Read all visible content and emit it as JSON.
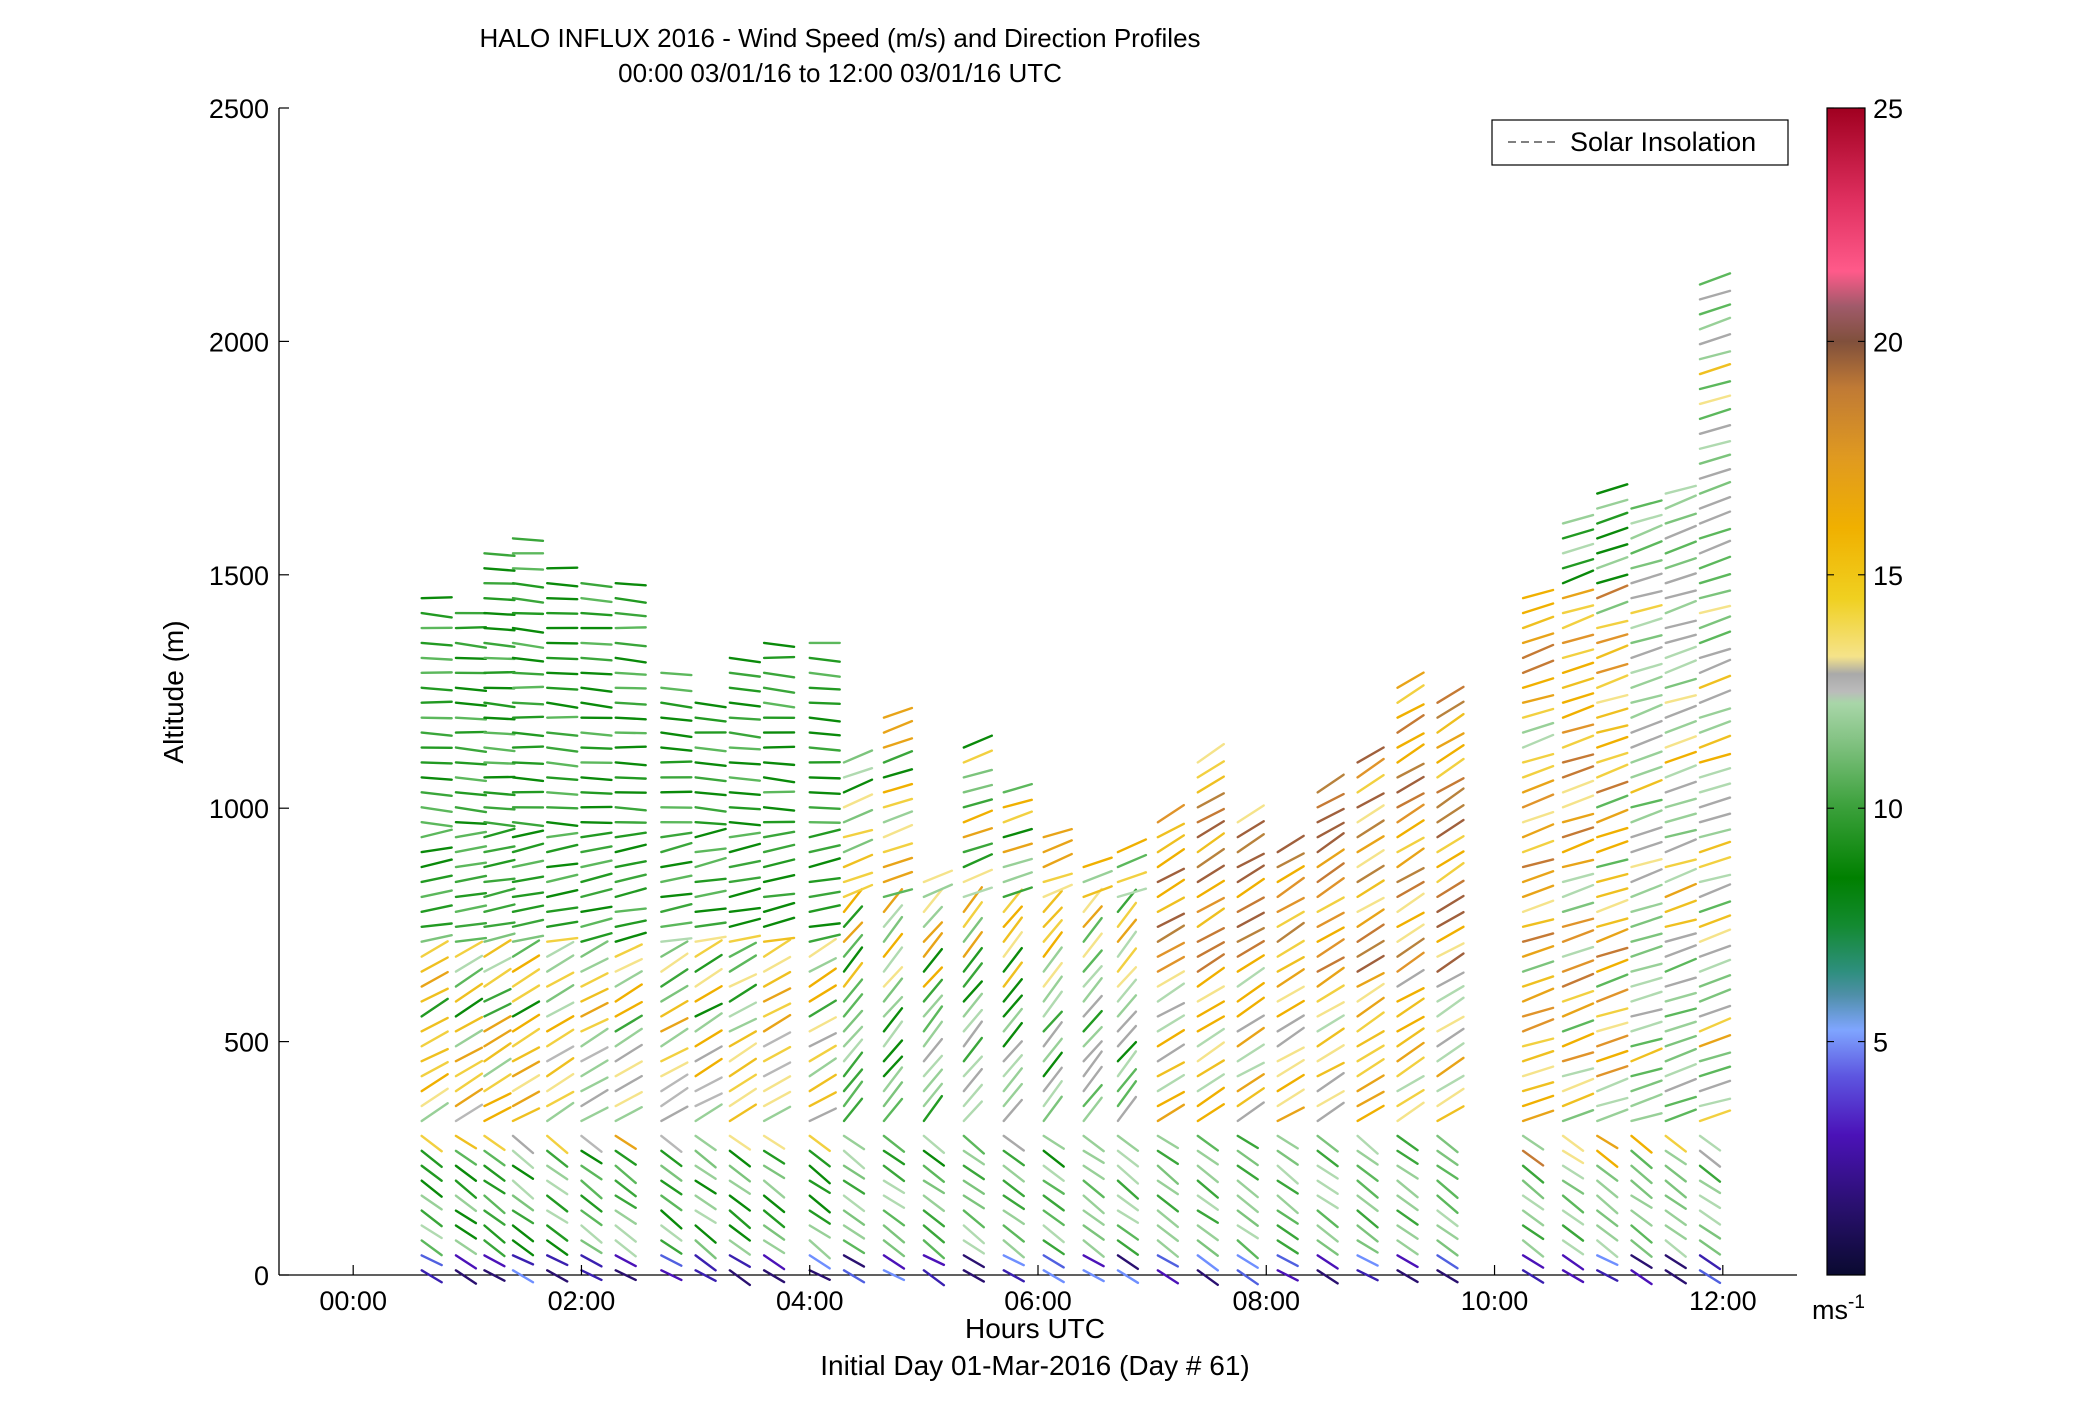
{
  "chart_data": {
    "type": "scatter",
    "title": "HALO INFLUX 2016 - Wind Speed (m/s) and Direction Profiles",
    "subtitle": "00:00 03/01/16 to 12:00 03/01/16  UTC",
    "xlabel": "Hours UTC",
    "xlabel2": "Initial Day 01-Mar-2016 (Day # 61)",
    "ylabel": "Altitude (m)",
    "x_ticks": [
      "00:00",
      "02:00",
      "04:00",
      "06:00",
      "08:00",
      "10:00",
      "12:00"
    ],
    "x_tick_values": [
      0,
      2,
      4,
      6,
      8,
      10,
      12
    ],
    "y_ticks": [
      "0",
      "500",
      "1000",
      "1500",
      "2000",
      "2500"
    ],
    "y_tick_values": [
      0,
      500,
      1000,
      1500,
      2000,
      2500
    ],
    "xlim": [
      -0.65,
      12.65
    ],
    "ylim": [
      0,
      2500
    ],
    "grid": false,
    "legend": {
      "label": "Solar Insolation",
      "placement": "top-right",
      "line_style": "dashed",
      "color": "#808080"
    },
    "colorbar": {
      "range": [
        0,
        25
      ],
      "ticks": [
        "5",
        "10",
        "15",
        "20",
        "25"
      ],
      "tick_values": [
        5,
        10,
        15,
        20,
        25
      ],
      "unit_label": "ms",
      "unit_exponent": "-1"
    },
    "profiles": [
      {
        "time": 0.6,
        "top": 1460
      },
      {
        "time": 0.9,
        "top": 1430
      },
      {
        "time": 1.15,
        "top": 1560
      },
      {
        "time": 1.4,
        "top": 1585
      },
      {
        "time": 1.7,
        "top": 1540
      },
      {
        "time": 2.0,
        "top": 1510
      },
      {
        "time": 2.3,
        "top": 1490
      },
      {
        "time": 2.7,
        "top": 1290
      },
      {
        "time": 3.0,
        "top": 1250
      },
      {
        "time": 3.3,
        "top": 1350
      },
      {
        "time": 3.6,
        "top": 1380
      },
      {
        "time": 4.0,
        "top": 1370
      },
      {
        "time": 4.3,
        "top": 1100
      },
      {
        "time": 4.65,
        "top": 1210
      },
      {
        "time": 5.0,
        "top": 870
      },
      {
        "time": 5.35,
        "top": 1130
      },
      {
        "time": 5.7,
        "top": 1060
      },
      {
        "time": 6.05,
        "top": 960
      },
      {
        "time": 6.4,
        "top": 880
      },
      {
        "time": 6.7,
        "top": 920
      },
      {
        "time": 7.05,
        "top": 1000
      },
      {
        "time": 7.4,
        "top": 1120
      },
      {
        "time": 7.75,
        "top": 1000
      },
      {
        "time": 8.1,
        "top": 930
      },
      {
        "time": 8.45,
        "top": 1060
      },
      {
        "time": 8.8,
        "top": 1110
      },
      {
        "time": 9.15,
        "top": 1280
      },
      {
        "time": 9.5,
        "top": 1250
      },
      {
        "time": 10.25,
        "top": 1460
      },
      {
        "time": 10.6,
        "top": 1620
      },
      {
        "time": 10.9,
        "top": 1700
      },
      {
        "time": 11.2,
        "top": 1670
      },
      {
        "time": 11.5,
        "top": 1680
      },
      {
        "time": 11.8,
        "top": 2140
      }
    ]
  }
}
